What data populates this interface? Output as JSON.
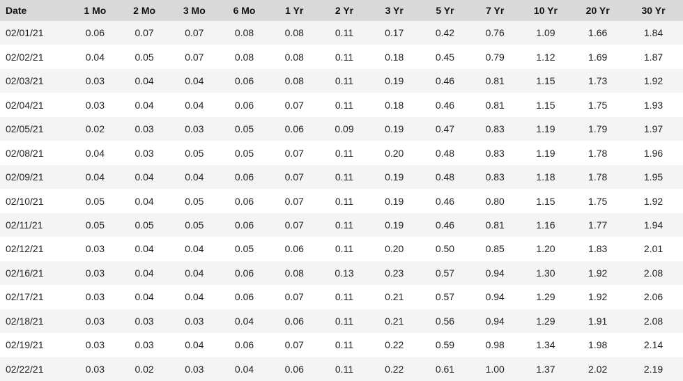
{
  "table": {
    "headers": [
      "Date",
      "1 Mo",
      "2 Mo",
      "3 Mo",
      "6 Mo",
      "1 Yr",
      "2 Yr",
      "3 Yr",
      "5 Yr",
      "7 Yr",
      "10 Yr",
      "20 Yr",
      "30 Yr"
    ],
    "rows": [
      [
        "02/01/21",
        "0.06",
        "0.07",
        "0.07",
        "0.08",
        "0.08",
        "0.11",
        "0.17",
        "0.42",
        "0.76",
        "1.09",
        "1.66",
        "1.84"
      ],
      [
        "02/02/21",
        "0.04",
        "0.05",
        "0.07",
        "0.08",
        "0.08",
        "0.11",
        "0.18",
        "0.45",
        "0.79",
        "1.12",
        "1.69",
        "1.87"
      ],
      [
        "02/03/21",
        "0.03",
        "0.04",
        "0.04",
        "0.06",
        "0.08",
        "0.11",
        "0.19",
        "0.46",
        "0.81",
        "1.15",
        "1.73",
        "1.92"
      ],
      [
        "02/04/21",
        "0.03",
        "0.04",
        "0.04",
        "0.06",
        "0.07",
        "0.11",
        "0.18",
        "0.46",
        "0.81",
        "1.15",
        "1.75",
        "1.93"
      ],
      [
        "02/05/21",
        "0.02",
        "0.03",
        "0.03",
        "0.05",
        "0.06",
        "0.09",
        "0.19",
        "0.47",
        "0.83",
        "1.19",
        "1.79",
        "1.97"
      ],
      [
        "02/08/21",
        "0.04",
        "0.03",
        "0.05",
        "0.05",
        "0.07",
        "0.11",
        "0.20",
        "0.48",
        "0.83",
        "1.19",
        "1.78",
        "1.96"
      ],
      [
        "02/09/21",
        "0.04",
        "0.04",
        "0.04",
        "0.06",
        "0.07",
        "0.11",
        "0.19",
        "0.48",
        "0.83",
        "1.18",
        "1.78",
        "1.95"
      ],
      [
        "02/10/21",
        "0.05",
        "0.04",
        "0.05",
        "0.06",
        "0.07",
        "0.11",
        "0.19",
        "0.46",
        "0.80",
        "1.15",
        "1.75",
        "1.92"
      ],
      [
        "02/11/21",
        "0.05",
        "0.05",
        "0.05",
        "0.06",
        "0.07",
        "0.11",
        "0.19",
        "0.46",
        "0.81",
        "1.16",
        "1.77",
        "1.94"
      ],
      [
        "02/12/21",
        "0.03",
        "0.04",
        "0.04",
        "0.05",
        "0.06",
        "0.11",
        "0.20",
        "0.50",
        "0.85",
        "1.20",
        "1.83",
        "2.01"
      ],
      [
        "02/16/21",
        "0.03",
        "0.04",
        "0.04",
        "0.06",
        "0.08",
        "0.13",
        "0.23",
        "0.57",
        "0.94",
        "1.30",
        "1.92",
        "2.08"
      ],
      [
        "02/17/21",
        "0.03",
        "0.04",
        "0.04",
        "0.06",
        "0.07",
        "0.11",
        "0.21",
        "0.57",
        "0.94",
        "1.29",
        "1.92",
        "2.06"
      ],
      [
        "02/18/21",
        "0.03",
        "0.03",
        "0.03",
        "0.04",
        "0.06",
        "0.11",
        "0.21",
        "0.56",
        "0.94",
        "1.29",
        "1.91",
        "2.08"
      ],
      [
        "02/19/21",
        "0.03",
        "0.03",
        "0.04",
        "0.06",
        "0.07",
        "0.11",
        "0.22",
        "0.59",
        "0.98",
        "1.34",
        "1.98",
        "2.14"
      ],
      [
        "02/22/21",
        "0.03",
        "0.02",
        "0.03",
        "0.04",
        "0.06",
        "0.11",
        "0.22",
        "0.61",
        "1.00",
        "1.37",
        "2.02",
        "2.19"
      ]
    ]
  },
  "colors": {
    "header_bg": "#d9d9d9",
    "row_stripe": "#f4f4f4",
    "row_plain": "#ffffff",
    "text": "#1f1f1f"
  }
}
